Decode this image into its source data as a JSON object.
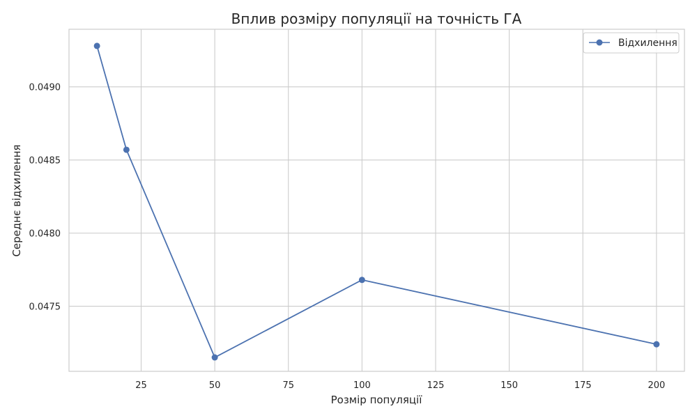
{
  "chart_data": {
    "type": "line",
    "title": "Вплив розміру популяції на точність ГА",
    "xlabel": "Розмір популяції",
    "ylabel": "Середнє відхилення",
    "xlim": [
      0.5,
      209.5
    ],
    "ylim": [
      0.047055,
      0.049394
    ],
    "x_ticks": [
      25,
      50,
      75,
      100,
      125,
      150,
      175,
      200
    ],
    "x_tick_labels": [
      "25",
      "50",
      "75",
      "100",
      "125",
      "150",
      "175",
      "200"
    ],
    "y_ticks": [
      0.0475,
      0.048,
      0.0485,
      0.049
    ],
    "y_tick_labels": [
      "0.0475",
      "0.0480",
      "0.0485",
      "0.0490"
    ],
    "grid": true,
    "legend_position": "top-right",
    "series": [
      {
        "name": "Відхилення",
        "color": "#4c72b0",
        "marker": "circle",
        "x": [
          10,
          20,
          50,
          100,
          200
        ],
        "y": [
          0.04928,
          0.04857,
          0.04715,
          0.04768,
          0.04724
        ]
      }
    ]
  }
}
